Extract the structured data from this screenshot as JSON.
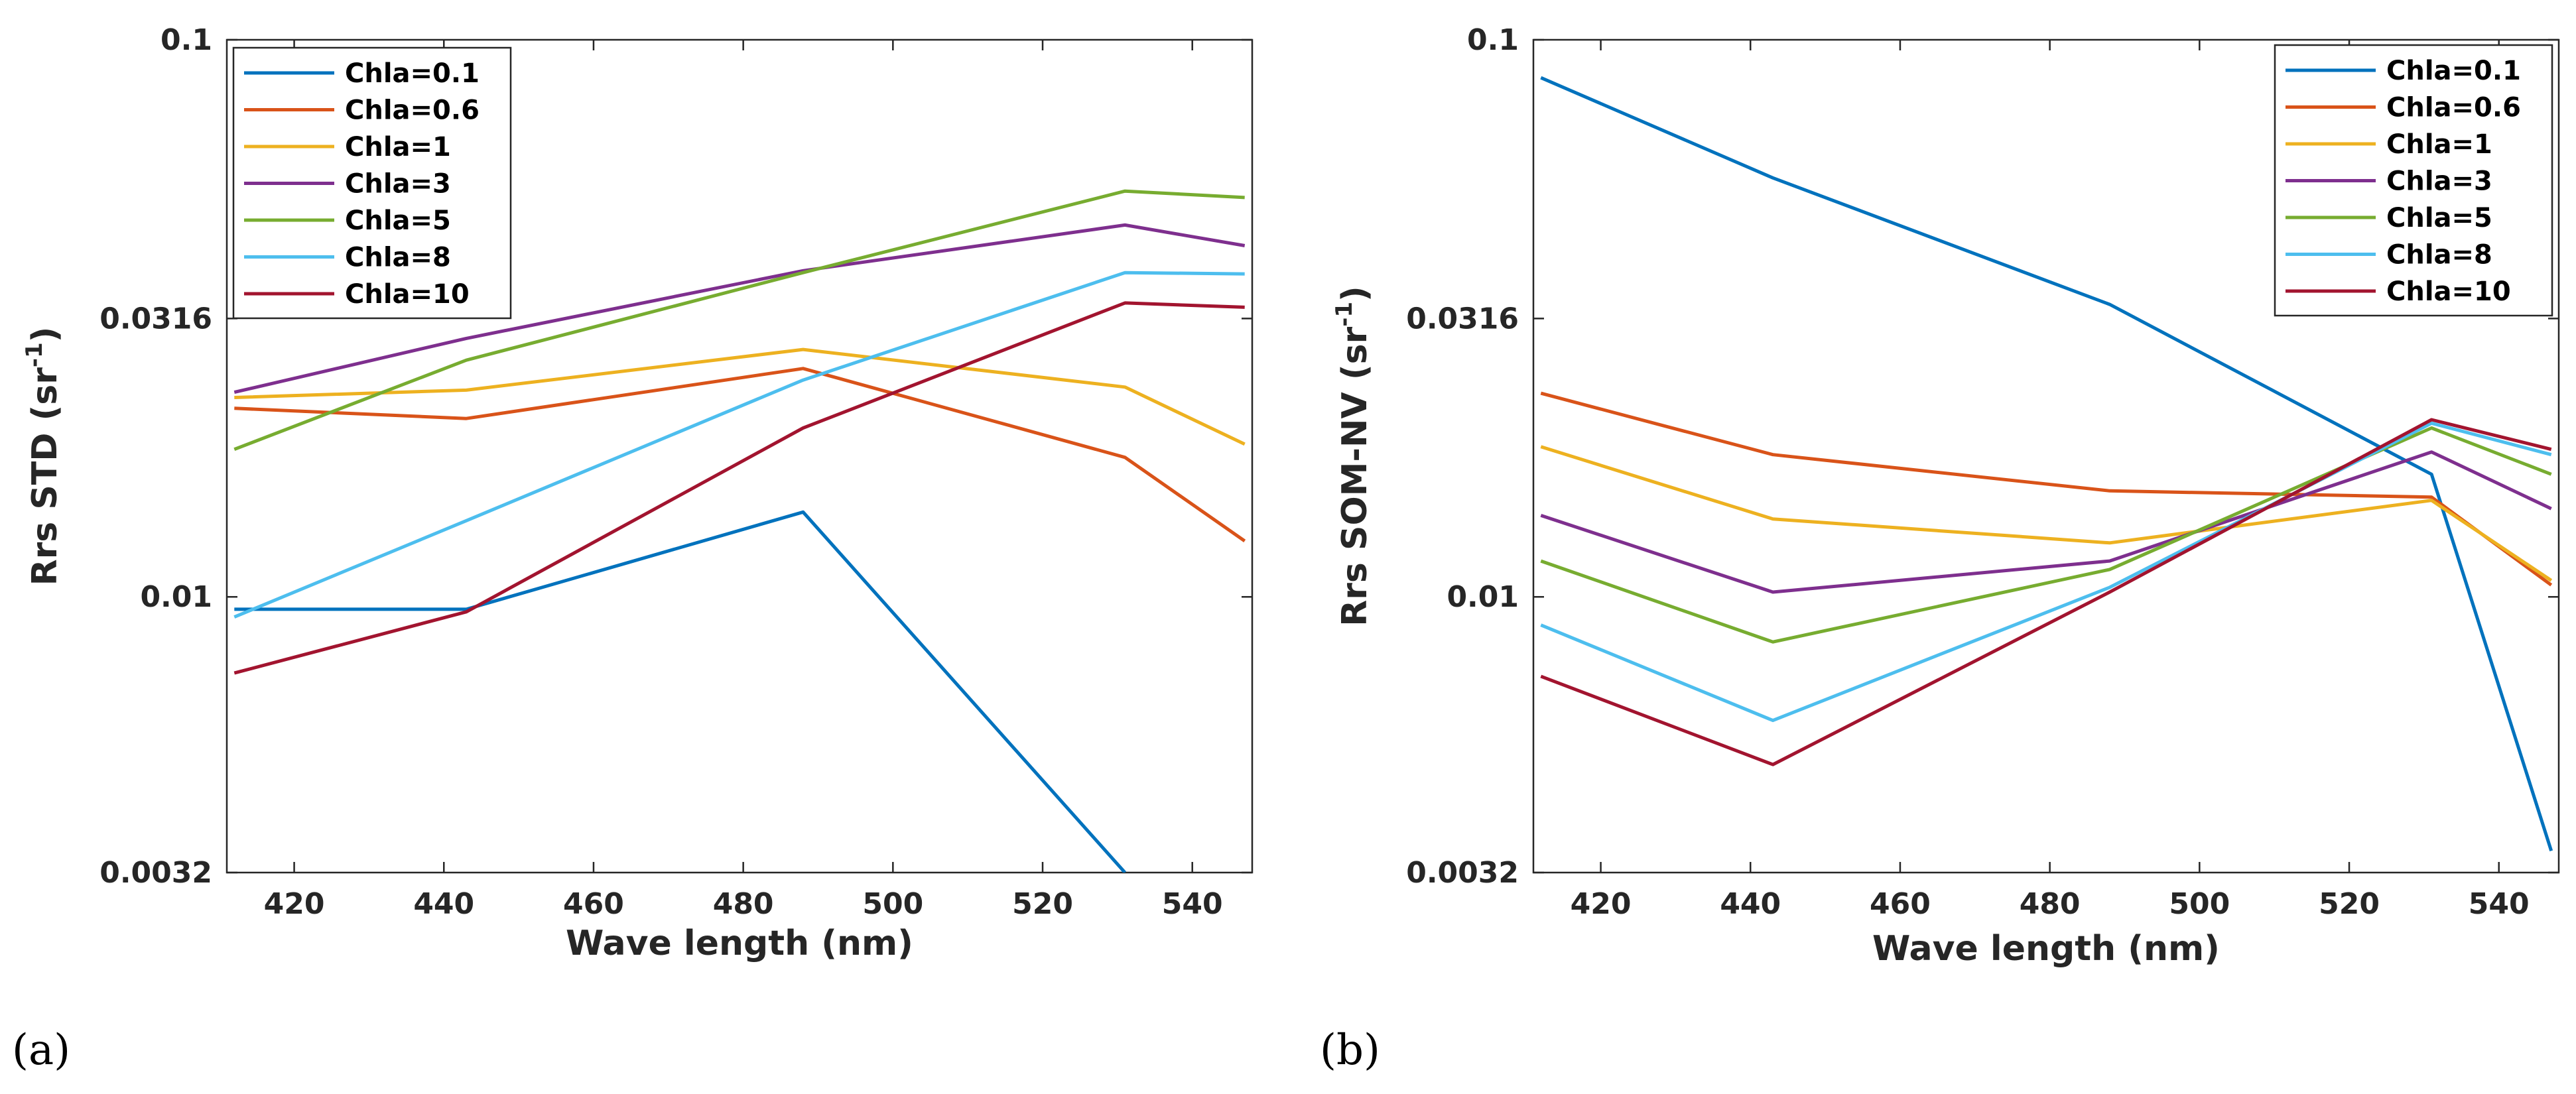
{
  "chart_data": [
    {
      "type": "line",
      "panel_label": "(a)",
      "xlabel": "Wave length (nm)",
      "ylabel": "Rrs STD (sr",
      "ylabel_sup": "-1",
      "ylabel_close": ")",
      "yscale": "log",
      "xlim": [
        411,
        548
      ],
      "ylim": [
        0.0032,
        0.1
      ],
      "xticks": [
        420,
        440,
        460,
        480,
        500,
        520,
        540
      ],
      "yticks": [
        0.0032,
        0.01,
        0.0316,
        0.1
      ],
      "ytick_labels": [
        "0.0032",
        "0.01",
        "0.0316",
        "0.1"
      ],
      "legend_position": "top-left",
      "x": [
        412,
        443,
        488,
        531,
        547
      ],
      "series": [
        {
          "name": "Chla=0.1",
          "color": "#0072BD",
          "values": [
            0.0095,
            0.0095,
            0.0142,
            0.0032,
            null
          ]
        },
        {
          "name": "Chla=0.6",
          "color": "#D95319",
          "values": [
            0.0218,
            0.0209,
            0.0257,
            0.0178,
            0.0126
          ]
        },
        {
          "name": "Chla=1",
          "color": "#EDB120",
          "values": [
            0.0228,
            0.0235,
            0.0278,
            0.0238,
            0.0188
          ]
        },
        {
          "name": "Chla=3",
          "color": "#7E2F8E",
          "values": [
            0.0233,
            0.0291,
            0.0385,
            0.0465,
            0.0427
          ]
        },
        {
          "name": "Chla=5",
          "color": "#77AC30",
          "values": [
            0.0184,
            0.0266,
            0.0382,
            0.0535,
            0.0521
          ]
        },
        {
          "name": "Chla=8",
          "color": "#4DBEEE",
          "values": [
            0.0092,
            0.0137,
            0.0245,
            0.0382,
            0.038
          ]
        },
        {
          "name": "Chla=10",
          "color": "#A2142F",
          "values": [
            0.0073,
            0.0094,
            0.0201,
            0.0337,
            0.0331
          ]
        }
      ]
    },
    {
      "type": "line",
      "panel_label": "(b)",
      "xlabel": "Wave length (nm)",
      "ylabel": "Rrs SOM-NV (sr",
      "ylabel_sup": "-1",
      "ylabel_close": ")",
      "yscale": "log",
      "xlim": [
        411,
        548
      ],
      "ylim": [
        0.0032,
        0.1
      ],
      "xticks": [
        420,
        440,
        460,
        480,
        500,
        520,
        540
      ],
      "yticks": [
        0.0032,
        0.01,
        0.0316,
        0.1
      ],
      "ytick_labels": [
        "0.0032",
        "0.01",
        "0.0316",
        "0.1"
      ],
      "legend_position": "top-right",
      "x": [
        412,
        443,
        488,
        531,
        547
      ],
      "series": [
        {
          "name": "Chla=0.1",
          "color": "#0072BD",
          "values": [
            0.0855,
            0.0565,
            0.0335,
            0.0166,
            0.0035
          ]
        },
        {
          "name": "Chla=0.6",
          "color": "#D95319",
          "values": [
            0.0232,
            0.018,
            0.0155,
            0.0151,
            0.0105
          ]
        },
        {
          "name": "Chla=1",
          "color": "#EDB120",
          "values": [
            0.0186,
            0.0138,
            0.0125,
            0.0149,
            0.0107
          ]
        },
        {
          "name": "Chla=3",
          "color": "#7E2F8E",
          "values": [
            0.014,
            0.0102,
            0.0116,
            0.0182,
            0.0144
          ]
        },
        {
          "name": "Chla=5",
          "color": "#77AC30",
          "values": [
            0.0116,
            0.0083,
            0.0112,
            0.0201,
            0.0166
          ]
        },
        {
          "name": "Chla=8",
          "color": "#4DBEEE",
          "values": [
            0.0089,
            0.006,
            0.0104,
            0.0205,
            0.018
          ]
        },
        {
          "name": "Chla=10",
          "color": "#A2142F",
          "values": [
            0.0072,
            0.005,
            0.0102,
            0.0208,
            0.0184
          ]
        }
      ]
    }
  ]
}
